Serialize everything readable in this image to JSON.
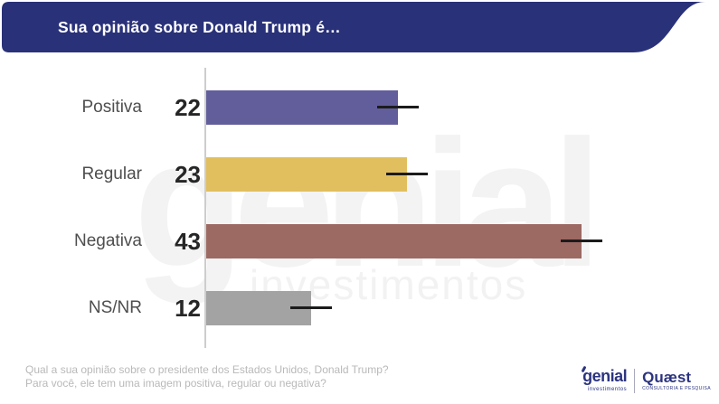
{
  "header": {
    "title": "Sua opinião sobre Donald Trump é…"
  },
  "colors": {
    "header_bg": "#293179",
    "brand_navy": "#2c3480",
    "axis_line": "#cdcdcd",
    "marker_dash": "#1b1b1b"
  },
  "chart_data": {
    "type": "bar",
    "orientation": "horizontal",
    "title": "Sua opinião sobre Donald Trump é…",
    "categories": [
      "Positiva",
      "Regular",
      "Negativa",
      "NS/NR"
    ],
    "values": [
      22,
      23,
      43,
      12
    ],
    "bar_colors": [
      "#625e9b",
      "#e2bf5e",
      "#9d6963",
      "#a4a3a3"
    ],
    "xlim": [
      0,
      58
    ],
    "grid": false,
    "legend": false
  },
  "watermark": {
    "line1": "genial",
    "line2": "investimentos"
  },
  "footnote": {
    "line1": "Qual a sua opinião sobre o presidente dos Estados Unidos, Donald Trump?",
    "line2": "Para você, ele tem uma imagem positiva, regular ou negativa?"
  },
  "logos": {
    "genial": {
      "name": "genial",
      "sub": "investimentos"
    },
    "quaest": {
      "name": "Quæst",
      "sub": "CONSULTORIA E PESQUISA"
    }
  }
}
